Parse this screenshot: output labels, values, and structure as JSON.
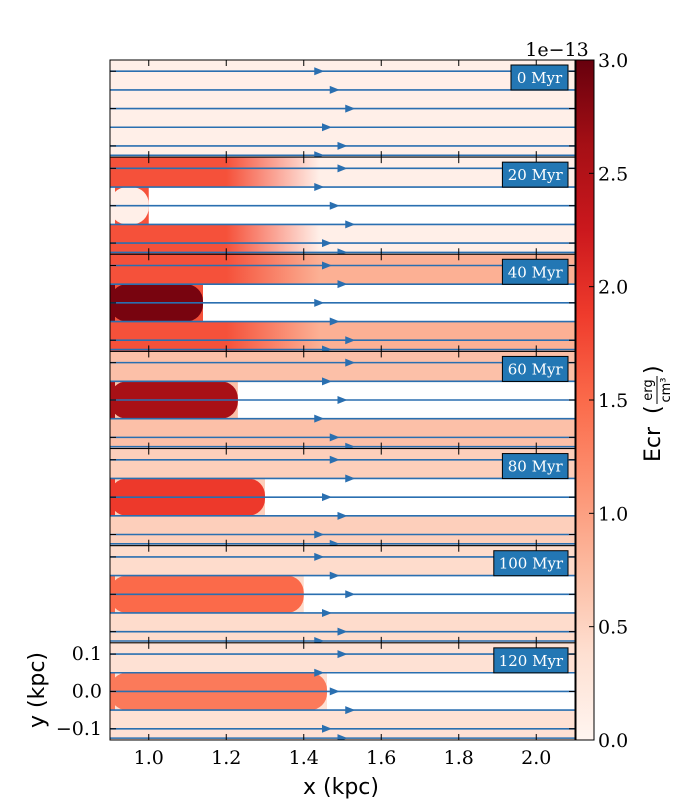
{
  "chart_data": {
    "type": "heatmap",
    "xlabel": "x  (kpc)",
    "ylabel": "y  (kpc)",
    "xlim": [
      0.9,
      2.1
    ],
    "ylim": [
      -0.13,
      0.13
    ],
    "x_ticks": [
      "1.0",
      "1.2",
      "1.4",
      "1.6",
      "1.8",
      "2.0"
    ],
    "x_tick_values": [
      1.0,
      1.2,
      1.4,
      1.6,
      1.8,
      2.0
    ],
    "y_ticks": [
      "0.1",
      "0.0",
      "−0.1"
    ],
    "y_tick_values": [
      0.1,
      0.0,
      -0.1
    ],
    "colorbar": {
      "label": "Ecr",
      "unit_numerator": "erg",
      "unit_denominator": "cm³",
      "scale_label": "1e−13",
      "range": [
        0.0,
        3.0
      ],
      "ticks": [
        "0.0",
        "0.5",
        "1.0",
        "1.5",
        "2.0",
        "2.5",
        "3.0"
      ],
      "tick_values": [
        0.0,
        0.5,
        1.0,
        1.5,
        2.0,
        2.5,
        3.0
      ],
      "colormap": "Reds"
    },
    "panels": [
      {
        "time_label": "0 Myr",
        "jet_value": 0.1,
        "front_x": 0.9,
        "background": 0.1,
        "flank_value": 0.1
      },
      {
        "time_label": "20 Myr",
        "jet_value": 0.1,
        "front_x": 1.0,
        "background": 0.1,
        "flank_value": 1.7
      },
      {
        "time_label": "40 Myr",
        "jet_value": 2.9,
        "front_x": 1.14,
        "background": 0.85,
        "flank_value": 1.7
      },
      {
        "time_label": "60 Myr",
        "jet_value": 2.6,
        "front_x": 1.23,
        "background": 0.7,
        "flank_value": 0.7
      },
      {
        "time_label": "80 Myr",
        "jet_value": 1.9,
        "front_x": 1.3,
        "background": 0.55,
        "flank_value": 0.55
      },
      {
        "time_label": "100 Myr",
        "jet_value": 1.5,
        "front_x": 1.4,
        "background": 0.42,
        "flank_value": 0.42
      },
      {
        "time_label": "120 Myr",
        "jet_value": 1.35,
        "front_x": 1.46,
        "background": 0.35,
        "flank_value": 0.35
      }
    ]
  },
  "colors": {
    "streamline": "#2a6fb0",
    "label_box": "#2377b4"
  }
}
